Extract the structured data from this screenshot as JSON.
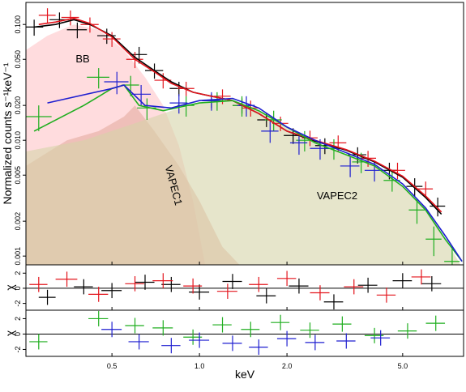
{
  "chart_data": {
    "type": "scatter",
    "xlabel": "keV",
    "ylabel": "Normalized counts s⁻¹keV⁻¹",
    "xlog": true,
    "ylog": true,
    "xlim": [
      0.253,
      8.1
    ],
    "ylim": [
      0.00084,
      0.155
    ],
    "xticks": [
      0.5,
      {
        "value": 1,
        "label": "1.0"
      },
      {
        "value": 2,
        "label": "2.0"
      },
      {
        "value": 5,
        "label": "5.0"
      }
    ],
    "yticks": [
      0.001,
      0.002,
      0.005,
      {
        "value": 0.01,
        "label": "0.010"
      },
      {
        "value": 0.02,
        "label": "0.020"
      },
      {
        "value": 0.05,
        "label": "0.050"
      },
      {
        "value": 0.1,
        "label": "0.100"
      }
    ],
    "components": [
      {
        "label": "BB",
        "color": "#ffc4c8",
        "x": [
          0.253,
          0.3,
          0.37,
          0.45,
          0.55,
          0.65,
          0.75,
          0.85,
          0.95,
          1.05
        ],
        "values": [
          0.06,
          0.08,
          0.1,
          0.09,
          0.06,
          0.035,
          0.02,
          0.009,
          0.003,
          0.0008
        ]
      },
      {
        "label": "VAPEC1",
        "color": "#e4aca0",
        "x": [
          0.253,
          0.35,
          0.45,
          0.55,
          0.6,
          0.7,
          0.85,
          1.0,
          1.2,
          1.4
        ],
        "values": [
          0.006,
          0.01,
          0.012,
          0.016,
          0.02,
          0.012,
          0.006,
          0.003,
          0.0012,
          0.0008
        ]
      },
      {
        "label": "VAPEC2",
        "color": "#d6d4a8",
        "x": [
          0.253,
          0.4,
          0.6,
          0.8,
          1.0,
          1.3,
          1.6,
          2.0,
          2.5,
          3.2,
          4.0,
          5.0,
          6.0,
          7.0,
          8.0
        ],
        "values": [
          0.008,
          0.01,
          0.014,
          0.018,
          0.021,
          0.022,
          0.018,
          0.013,
          0.0095,
          0.0075,
          0.006,
          0.004,
          0.0025,
          0.0014,
          0.0008
        ]
      }
    ],
    "series": [
      {
        "color": "#000000",
        "x": [
          0.27,
          0.33,
          0.38,
          0.48,
          0.62,
          0.7,
          0.85,
          1.1,
          1.4,
          1.7,
          2.1,
          2.7,
          3.5,
          4.5,
          5.5,
          6.6
        ],
        "values": [
          0.095,
          0.11,
          0.09,
          0.08,
          0.055,
          0.04,
          0.028,
          0.022,
          0.02,
          0.015,
          0.011,
          0.009,
          0.0075,
          0.0055,
          0.004,
          0.0027
        ],
        "xerr": [
          0.02,
          0.025,
          0.03,
          0.035,
          0.04,
          0.05,
          0.06,
          0.08,
          0.1,
          0.12,
          0.15,
          0.2,
          0.25,
          0.3,
          0.35,
          0.4
        ],
        "yerr": [
          0.015,
          0.017,
          0.014,
          0.012,
          0.009,
          0.006,
          0.004,
          0.003,
          0.003,
          0.002,
          0.0017,
          0.0014,
          0.0012,
          0.0009,
          0.0007,
          0.0005
        ],
        "model_x": [
          0.27,
          0.32,
          0.37,
          0.42,
          0.5,
          0.6,
          0.7,
          0.8,
          0.95,
          1.1,
          1.3,
          1.6,
          2.0,
          2.5,
          3.2,
          4.0,
          5.0,
          6.0,
          6.8
        ],
        "model": [
          0.095,
          0.1,
          0.11,
          0.1,
          0.08,
          0.052,
          0.04,
          0.032,
          0.026,
          0.024,
          0.022,
          0.017,
          0.012,
          0.0098,
          0.0082,
          0.0065,
          0.0048,
          0.0032,
          0.0023
        ]
      },
      {
        "color": "#e3141c",
        "x": [
          0.3,
          0.36,
          0.42,
          0.5,
          0.6,
          0.75,
          0.9,
          1.2,
          1.5,
          1.9,
          2.4,
          3.0,
          3.8,
          4.8,
          6.0
        ],
        "values": [
          0.12,
          0.115,
          0.1,
          0.075,
          0.05,
          0.033,
          0.028,
          0.024,
          0.019,
          0.014,
          0.0105,
          0.0095,
          0.007,
          0.0055,
          0.0038
        ],
        "xerr": [
          0.02,
          0.025,
          0.03,
          0.035,
          0.04,
          0.05,
          0.06,
          0.08,
          0.1,
          0.12,
          0.15,
          0.2,
          0.25,
          0.3,
          0.35
        ],
        "yerr": [
          0.018,
          0.017,
          0.015,
          0.011,
          0.008,
          0.005,
          0.004,
          0.0035,
          0.003,
          0.002,
          0.0016,
          0.0015,
          0.0011,
          0.0009,
          0.0006
        ],
        "model_x": [
          0.28,
          0.32,
          0.37,
          0.42,
          0.5,
          0.6,
          0.7,
          0.8,
          0.95,
          1.1,
          1.3,
          1.6,
          2.0,
          2.5,
          3.2,
          4.0,
          5.0,
          6.0,
          6.8
        ],
        "model": [
          0.1,
          0.105,
          0.113,
          0.102,
          0.078,
          0.05,
          0.039,
          0.031,
          0.026,
          0.024,
          0.022,
          0.017,
          0.012,
          0.01,
          0.0083,
          0.0066,
          0.0049,
          0.0033,
          0.0024
        ]
      },
      {
        "color": "#1fae1f",
        "x": [
          0.28,
          0.45,
          0.58,
          0.66,
          0.9,
          1.15,
          1.4,
          1.8,
          2.3,
          2.9,
          3.6,
          4.6,
          5.6,
          6.4,
          7.4
        ],
        "values": [
          0.016,
          0.035,
          0.03,
          0.019,
          0.02,
          0.022,
          0.02,
          0.015,
          0.01,
          0.0085,
          0.0065,
          0.0045,
          0.0025,
          0.0014,
          0.0009
        ],
        "xerr": [
          0.03,
          0.04,
          0.04,
          0.05,
          0.06,
          0.08,
          0.1,
          0.12,
          0.15,
          0.2,
          0.25,
          0.3,
          0.35,
          0.4,
          0.45
        ],
        "yerr": [
          0.004,
          0.007,
          0.006,
          0.004,
          0.004,
          0.004,
          0.004,
          0.003,
          0.002,
          0.0017,
          0.0013,
          0.0009,
          0.0006,
          0.0004,
          0.0003
        ],
        "model_x": [
          0.27,
          0.4,
          0.5,
          0.55,
          0.62,
          0.75,
          1.0,
          1.3,
          1.6,
          2.0,
          2.5,
          3.2,
          4.0,
          5.0,
          6.0,
          7.0,
          8.0
        ],
        "model": [
          0.012,
          0.02,
          0.028,
          0.03,
          0.02,
          0.018,
          0.021,
          0.022,
          0.018,
          0.013,
          0.0095,
          0.0075,
          0.006,
          0.004,
          0.0025,
          0.0014,
          0.0009
        ]
      },
      {
        "color": "#1f1fd0",
        "x": [
          0.52,
          0.63,
          0.85,
          1.1,
          1.45,
          1.75,
          2.2,
          2.6,
          3.3,
          4.0
        ],
        "values": [
          0.032,
          0.025,
          0.021,
          0.022,
          0.02,
          0.012,
          0.0095,
          0.0085,
          0.006,
          0.0055
        ],
        "xerr": [
          0.05,
          0.05,
          0.06,
          0.08,
          0.1,
          0.12,
          0.15,
          0.2,
          0.25,
          0.3
        ],
        "yerr": [
          0.007,
          0.005,
          0.004,
          0.004,
          0.004,
          0.0025,
          0.002,
          0.0017,
          0.0012,
          0.0011
        ],
        "model_x": [
          0.3,
          0.5,
          0.55,
          0.65,
          0.8,
          1.0,
          1.3,
          1.6,
          2.0,
          2.5,
          3.2,
          4.0,
          5.0,
          6.0,
          7.0,
          8.0
        ],
        "model": [
          0.021,
          0.028,
          0.03,
          0.02,
          0.019,
          0.022,
          0.023,
          0.019,
          0.013,
          0.01,
          0.0078,
          0.0062,
          0.0042,
          0.0026,
          0.0015,
          0.0009
        ]
      }
    ],
    "residual_panels": [
      {
        "ylabel": "χ",
        "ylim": [
          -2.9,
          3.1
        ],
        "yticks": [
          -2,
          0,
          2
        ],
        "series": [
          {
            "color": "#000000",
            "x": [
              0.3,
              0.4,
              0.5,
              0.65,
              0.8,
              1.0,
              1.3,
              1.7,
              2.2,
              2.9,
              3.8,
              5.0,
              6.3
            ],
            "values": [
              -1.2,
              0.2,
              -0.3,
              0.8,
              0.5,
              -0.5,
              0.9,
              -1,
              0.3,
              -1.8,
              0.4,
              1,
              0.6
            ],
            "xerr": [
              0.02,
              0.03,
              0.04,
              0.05,
              0.06,
              0.08,
              0.1,
              0.13,
              0.17,
              0.22,
              0.29,
              0.38,
              0.48
            ],
            "yerr": [
              1,
              1,
              1,
              1,
              1,
              1,
              1,
              1,
              1,
              1,
              1,
              1,
              1
            ]
          },
          {
            "color": "#e3141c",
            "x": [
              0.28,
              0.35,
              0.45,
              0.6,
              0.75,
              0.95,
              1.25,
              1.6,
              2.0,
              2.6,
              3.4,
              4.4,
              5.8
            ],
            "values": [
              0.5,
              1.2,
              -0.8,
              0.6,
              1,
              0.3,
              -0.4,
              0.5,
              1.3,
              -0.6,
              0.2,
              -0.9,
              1.5
            ],
            "xerr": [
              0.02,
              0.03,
              0.035,
              0.045,
              0.06,
              0.07,
              0.1,
              0.12,
              0.15,
              0.2,
              0.26,
              0.33,
              0.44
            ],
            "yerr": [
              1,
              1,
              1,
              1,
              1,
              1,
              1,
              1,
              1,
              1,
              1,
              1,
              1
            ]
          }
        ]
      },
      {
        "ylabel": "χ",
        "ylim": [
          -2.9,
          3.1
        ],
        "yticks": [
          -2,
          0,
          2
        ],
        "series": [
          {
            "color": "#1fae1f",
            "x": [
              0.28,
              0.45,
              0.6,
              0.75,
              0.95,
              1.2,
              1.5,
              1.9,
              2.4,
              3.1,
              4.0,
              5.2,
              6.5
            ],
            "values": [
              -1,
              2,
              1.1,
              0.8,
              -0.4,
              1.2,
              0.6,
              1.5,
              0.5,
              1.3,
              -0.2,
              0.4,
              1.4
            ],
            "xerr": [
              0.02,
              0.035,
              0.045,
              0.06,
              0.07,
              0.09,
              0.11,
              0.14,
              0.18,
              0.23,
              0.3,
              0.39,
              0.49
            ],
            "yerr": [
              1,
              1,
              1,
              1,
              1,
              1,
              1,
              1,
              1,
              1,
              1,
              1,
              1
            ]
          },
          {
            "color": "#1f1fd0",
            "x": [
              0.5,
              0.62,
              0.8,
              1.0,
              1.3,
              1.6,
              2.0,
              2.5,
              3.2,
              4.2
            ],
            "values": [
              0.6,
              -1,
              -1.5,
              -0.8,
              -1.2,
              -1.7,
              -0.6,
              -1.1,
              -0.9,
              -0.5
            ],
            "xerr": [
              0.04,
              0.05,
              0.06,
              0.08,
              0.1,
              0.12,
              0.15,
              0.19,
              0.24,
              0.32
            ],
            "yerr": [
              1,
              1,
              1,
              1,
              1,
              1,
              1,
              1,
              1,
              1
            ]
          }
        ]
      }
    ]
  }
}
